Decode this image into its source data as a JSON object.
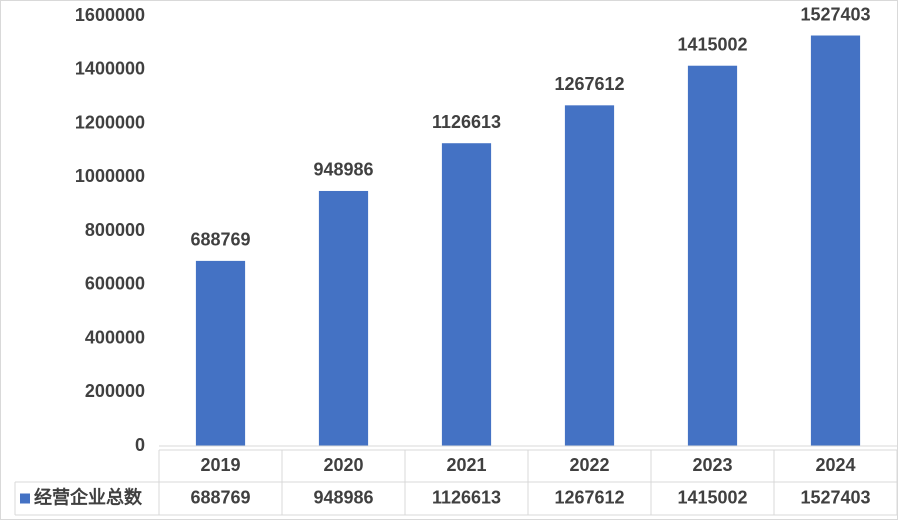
{
  "chart_data": {
    "type": "bar",
    "categories": [
      "2019",
      "2020",
      "2021",
      "2022",
      "2023",
      "2024"
    ],
    "series": [
      {
        "name": "经营企业总数",
        "color": "#4472c4",
        "values": [
          688769,
          948986,
          1126613,
          1267612,
          1415002,
          1527403
        ]
      }
    ],
    "ylim": [
      0,
      1600000
    ],
    "yticks": [
      0,
      200000,
      400000,
      600000,
      800000,
      1000000,
      1200000,
      1400000,
      1600000
    ],
    "grid": false,
    "data_labels": true,
    "data_table": true
  }
}
